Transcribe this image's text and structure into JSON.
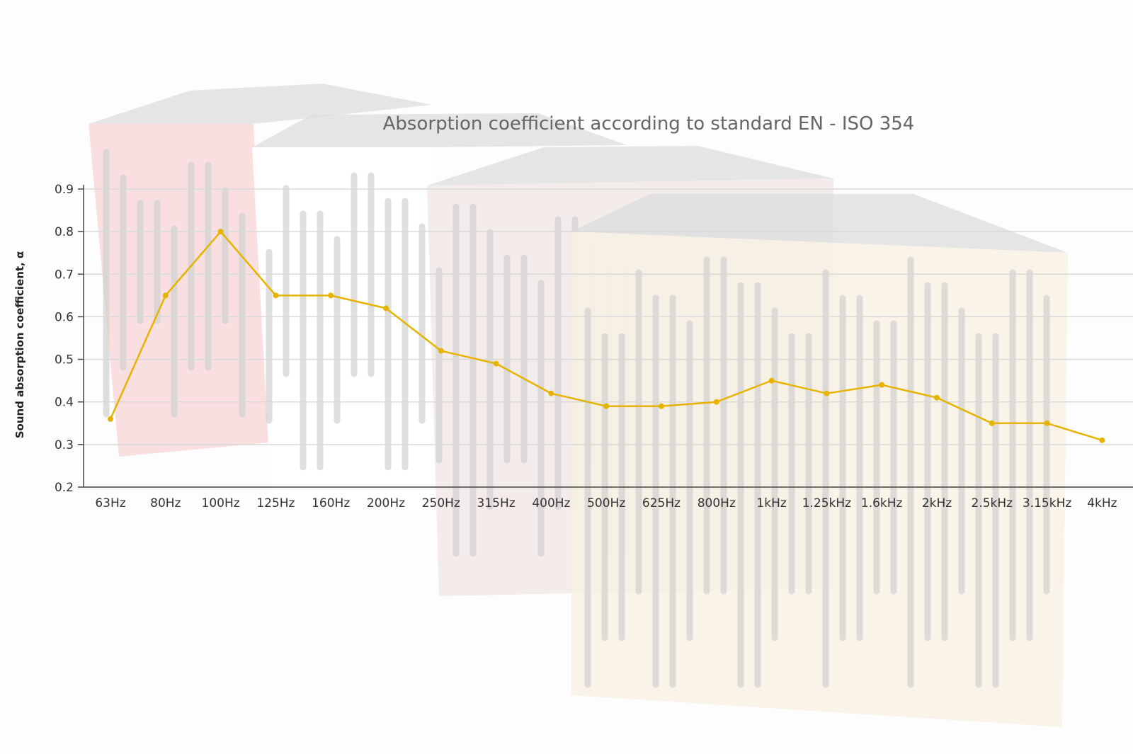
{
  "chart_data": {
    "type": "line",
    "title": "Absorption coefficient according to standard EN - ISO 354",
    "xlabel": "",
    "ylabel": "Sound absorption coefficient, α",
    "categories": [
      "63Hz",
      "80Hz",
      "100Hz",
      "125Hz",
      "160Hz",
      "200Hz",
      "250Hz",
      "315Hz",
      "400Hz",
      "500Hz",
      "625Hz",
      "800Hz",
      "1kHz",
      "1.25kHz",
      "1.6kHz",
      "2kHz",
      "2.5kHz",
      "3.15kHz",
      "4kHz"
    ],
    "series": [
      {
        "values": [
          0.36,
          0.65,
          0.8,
          0.65,
          0.65,
          0.62,
          0.52,
          0.49,
          0.42,
          0.39,
          0.39,
          0.4,
          0.45,
          0.42,
          0.44,
          0.41,
          0.35,
          0.35,
          0.31
        ],
        "color": "#e6b400"
      }
    ],
    "ylim": [
      0.2,
      0.9
    ],
    "yticks": [
      0.2,
      0.3,
      0.4,
      0.5,
      0.6,
      0.7,
      0.8,
      0.9
    ],
    "grid": true,
    "legend": "none"
  },
  "colors": {
    "line": "#e6b400",
    "grid": "#d8d8d8",
    "axis": "#444444",
    "panel_red": "#f3b4b4",
    "panel_white": "#ffffff",
    "panel_brown": "#e6d2d2",
    "panel_wood": "#f6ecdc",
    "panel_top": "#d2d2d2",
    "slot": "#c2c2c2"
  },
  "background": {
    "description_icon": "acoustic-panels-image"
  }
}
